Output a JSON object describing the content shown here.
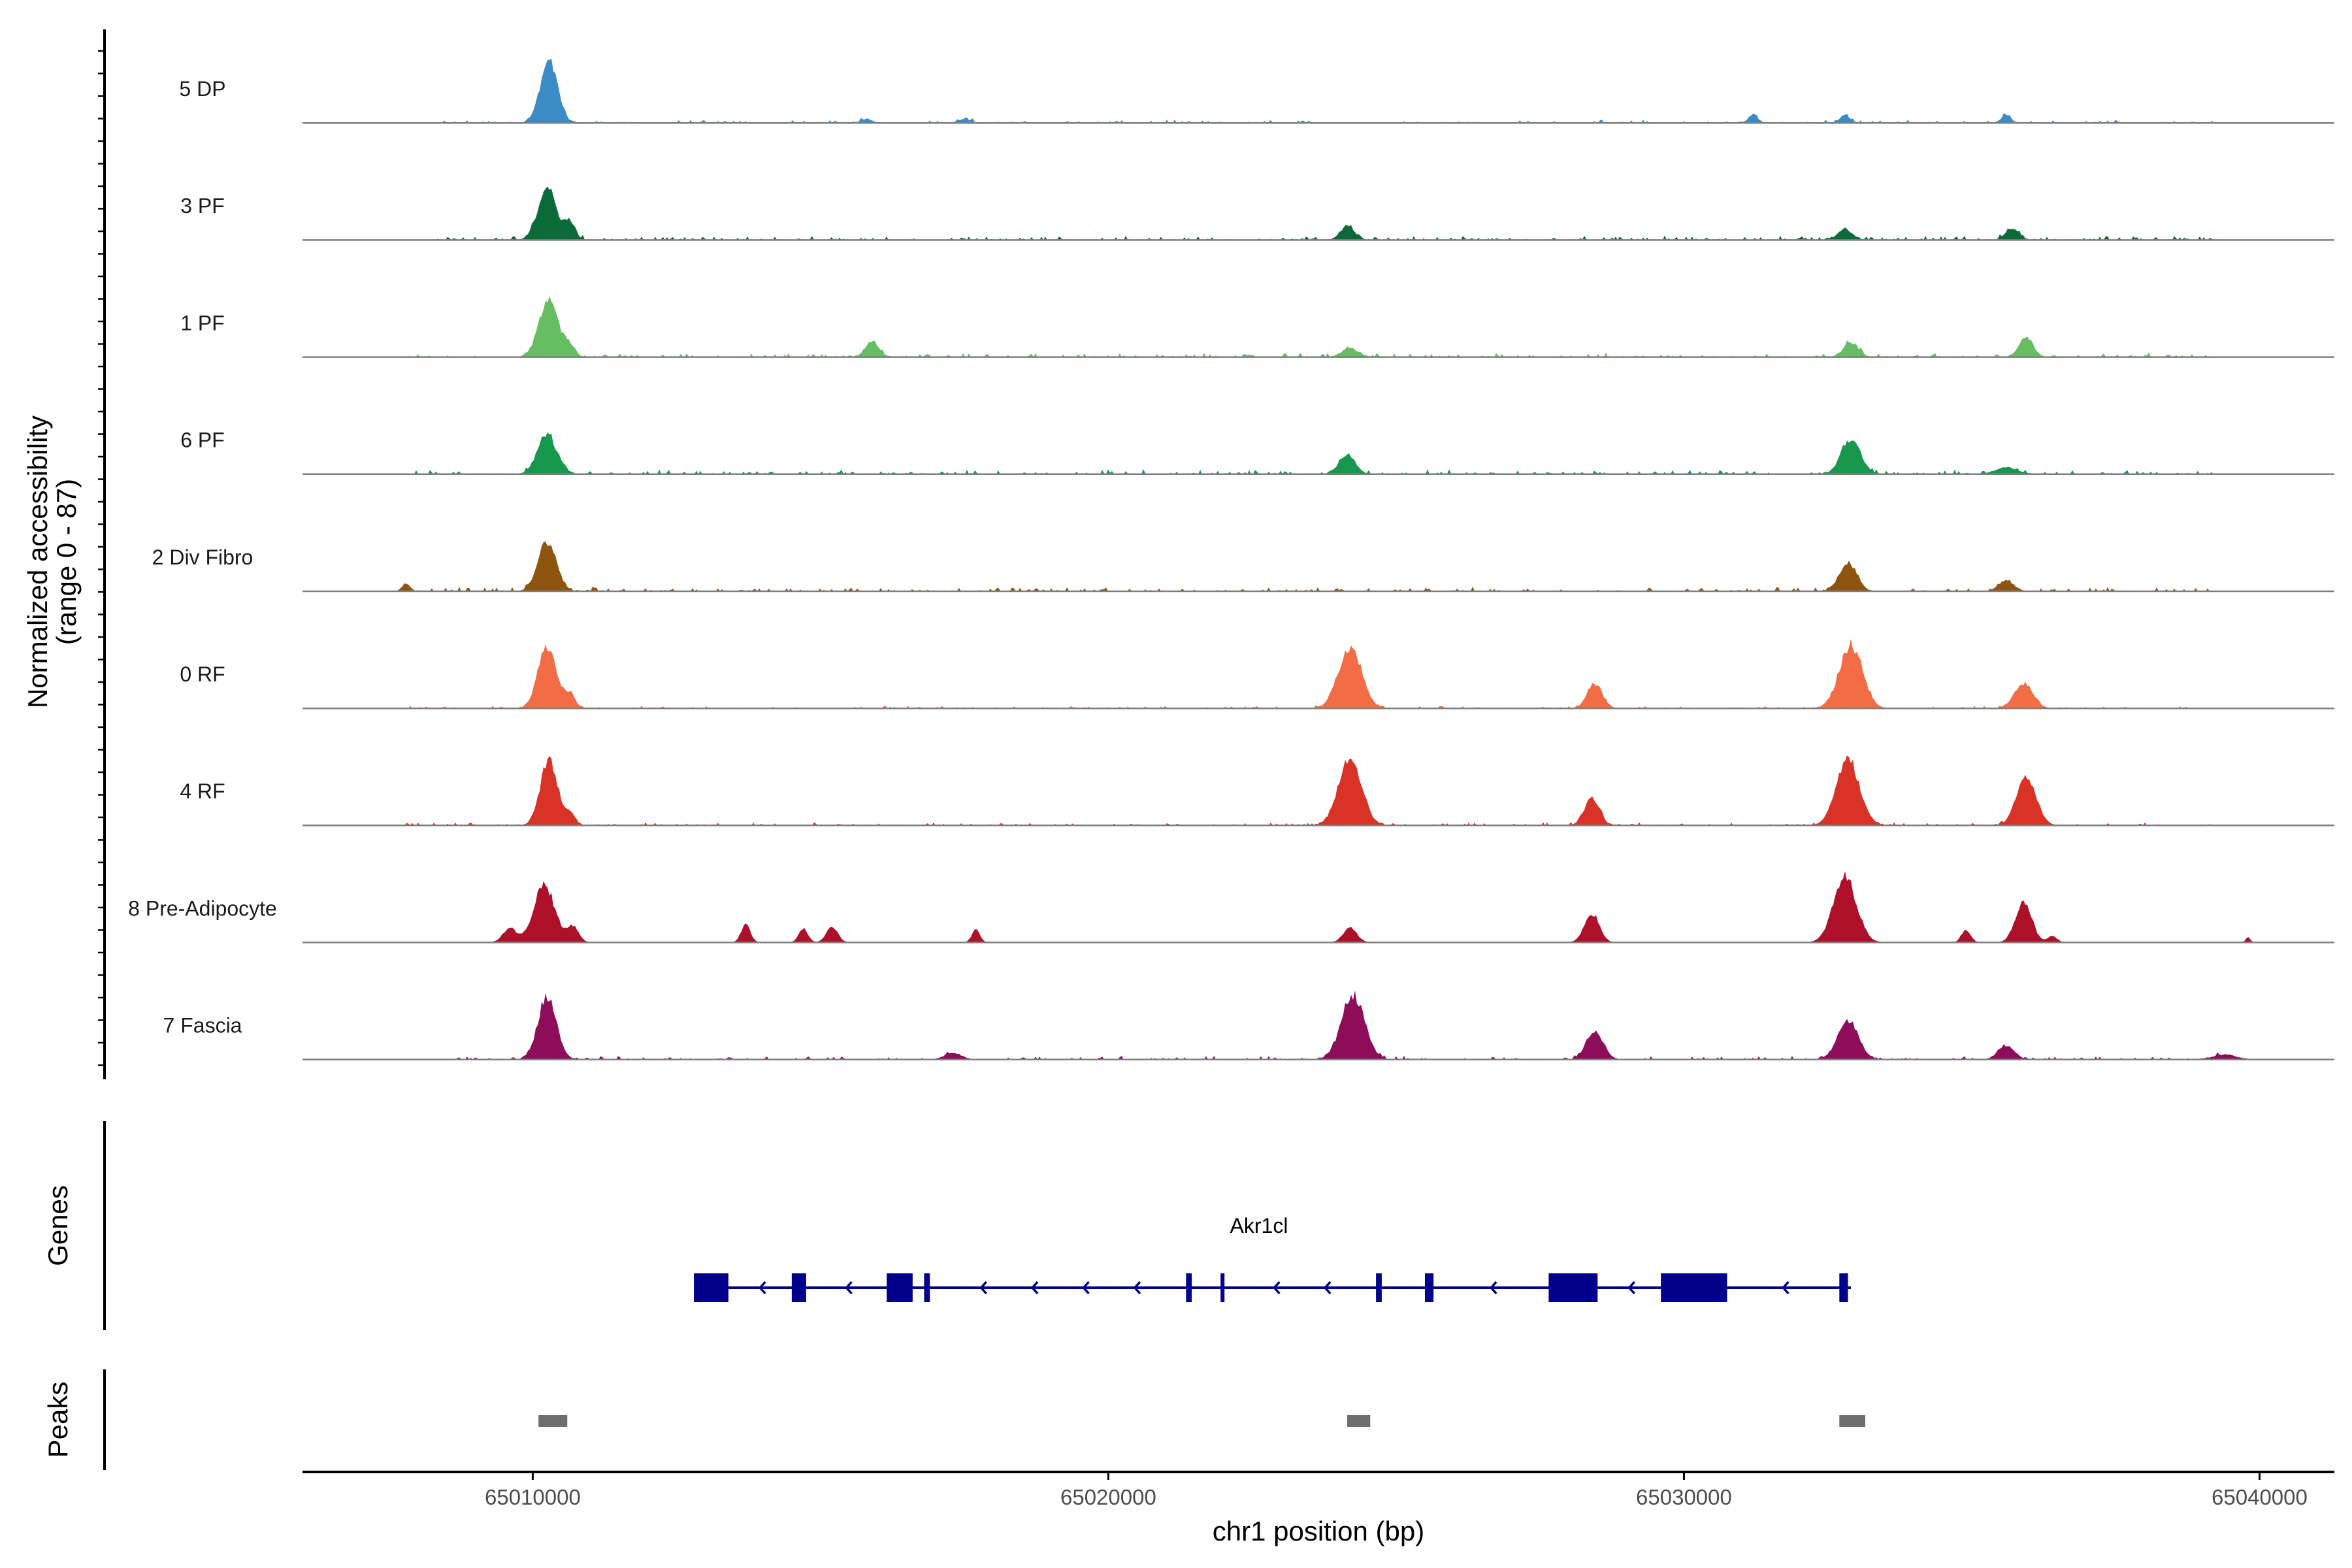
{
  "chart_data": {
    "type": "area",
    "title": "",
    "region": {
      "chromosome": "chr1",
      "start": 65006000,
      "end": 65041300
    },
    "xlabel": "chr1 position (bp)",
    "xticks": [
      65010000,
      65020000,
      65030000,
      65040000
    ],
    "xtick_labels": [
      "65010000",
      "65020000",
      "65030000",
      "65040000"
    ],
    "ylabel": [
      "Normalized accessibility",
      "(range 0 - 87)"
    ],
    "ylim": [
      0,
      87
    ],
    "tracks": [
      {
        "name": "5 DP",
        "color": "#3A8BC6",
        "peaks": [
          [
            65010280,
            0.95,
            150
          ],
          [
            65031200,
            0.13,
            80
          ],
          [
            65032800,
            0.12,
            90
          ],
          [
            65035600,
            0.13,
            80
          ],
          [
            65015800,
            0.06,
            100
          ],
          [
            65017500,
            0.06,
            100
          ]
        ],
        "noise": {
          "from": 65008300,
          "to": 65039300,
          "level": 0.05
        }
      },
      {
        "name": "3 PF",
        "color": "#0B6B38",
        "peaks": [
          [
            65010250,
            0.8,
            160
          ],
          [
            65010650,
            0.28,
            90
          ],
          [
            65024150,
            0.22,
            120
          ],
          [
            65032800,
            0.16,
            130
          ],
          [
            65035700,
            0.17,
            120
          ]
        ],
        "noise": {
          "from": 65008300,
          "to": 65039300,
          "level": 0.07
        }
      },
      {
        "name": "1 PF",
        "color": "#66BE62",
        "peaks": [
          [
            65010280,
            0.85,
            170
          ],
          [
            65010650,
            0.16,
            90
          ],
          [
            65015900,
            0.24,
            120
          ],
          [
            65024200,
            0.13,
            150
          ],
          [
            65032900,
            0.22,
            130
          ],
          [
            65035950,
            0.3,
            120
          ]
        ],
        "noise": {
          "from": 65007800,
          "to": 65039300,
          "level": 0.07
        }
      },
      {
        "name": "6 PF",
        "color": "#17984D",
        "peaks": [
          [
            65010250,
            0.6,
            170
          ],
          [
            65024150,
            0.3,
            140
          ],
          [
            65032900,
            0.52,
            170
          ],
          [
            65035600,
            0.1,
            200
          ]
        ],
        "noise": {
          "from": 65007800,
          "to": 65039300,
          "level": 0.08
        }
      },
      {
        "name": "2 Div Fibro",
        "color": "#8D5510",
        "peaks": [
          [
            65010250,
            0.75,
            160
          ],
          [
            65032850,
            0.45,
            150
          ],
          [
            65035600,
            0.17,
            130
          ],
          [
            65007800,
            0.12,
            70
          ]
        ],
        "noise": {
          "from": 65007700,
          "to": 65039100,
          "level": 0.07
        }
      },
      {
        "name": "0 RF",
        "color": "#F26D45",
        "peaks": [
          [
            65010250,
            0.95,
            160
          ],
          [
            65010650,
            0.22,
            90
          ],
          [
            65024200,
            0.95,
            200
          ],
          [
            65028450,
            0.38,
            130
          ],
          [
            65032900,
            0.95,
            200
          ],
          [
            65035900,
            0.38,
            160
          ]
        ],
        "noise": {
          "from": 65007600,
          "to": 65039300,
          "level": 0.04
        }
      },
      {
        "name": "4 RF",
        "color": "#D93226",
        "peaks": [
          [
            65010280,
            1.0,
            150
          ],
          [
            65010650,
            0.18,
            90
          ],
          [
            65024200,
            1.0,
            200
          ],
          [
            65028400,
            0.42,
            130
          ],
          [
            65032850,
            1.0,
            200
          ],
          [
            65035950,
            0.75,
            170
          ]
        ],
        "noise": {
          "from": 65007600,
          "to": 65039300,
          "level": 0.05
        }
      },
      {
        "name": "8 Pre-Adipocyte",
        "color": "#AE1029",
        "peaks": [
          [
            65010200,
            0.9,
            180
          ],
          [
            65009600,
            0.22,
            120
          ],
          [
            65010700,
            0.25,
            100
          ],
          [
            65013700,
            0.28,
            80
          ],
          [
            65014700,
            0.22,
            80
          ],
          [
            65015200,
            0.25,
            100
          ],
          [
            65017700,
            0.2,
            70
          ],
          [
            65024200,
            0.22,
            120
          ],
          [
            65028400,
            0.45,
            130
          ],
          [
            65032800,
            1.0,
            200
          ],
          [
            65035900,
            0.65,
            140
          ],
          [
            65034900,
            0.2,
            80
          ],
          [
            65036400,
            0.1,
            80
          ],
          [
            65039800,
            0.08,
            40
          ]
        ],
        "noise": null
      },
      {
        "name": "7 Fascia",
        "color": "#8E0D5A",
        "peaks": [
          [
            65010250,
            0.95,
            160
          ],
          [
            65024250,
            1.0,
            200
          ],
          [
            65028450,
            0.42,
            150
          ],
          [
            65032850,
            0.6,
            180
          ],
          [
            65035600,
            0.22,
            140
          ],
          [
            65039400,
            0.08,
            200
          ],
          [
            65017300,
            0.1,
            150
          ]
        ],
        "noise": {
          "from": 65008200,
          "to": 65039300,
          "level": 0.06
        }
      }
    ],
    "gene_track": {
      "label": "Genes",
      "gene_name": "Akr1cl",
      "color": "#00008B",
      "strand": "-",
      "intron_start": 65012800,
      "intron_end": 65032900,
      "exons": [
        [
          65012800,
          65013400
        ],
        [
          65014500,
          65014750
        ],
        [
          65016150,
          65016600
        ],
        [
          65016800,
          65016900
        ],
        [
          65021350,
          65021450
        ],
        [
          65021950,
          65022000
        ],
        [
          65024650,
          65024750
        ],
        [
          65025500,
          65025650
        ],
        [
          65027650,
          65028500
        ],
        [
          65029600,
          65030750
        ],
        [
          65032700,
          65032850
        ]
      ]
    },
    "peaks_track": {
      "label": "Peaks",
      "color": "#6E6E6E",
      "regions": [
        [
          65010100,
          65010600
        ],
        [
          65024150,
          65024550
        ],
        [
          65032700,
          65033150
        ]
      ]
    }
  }
}
